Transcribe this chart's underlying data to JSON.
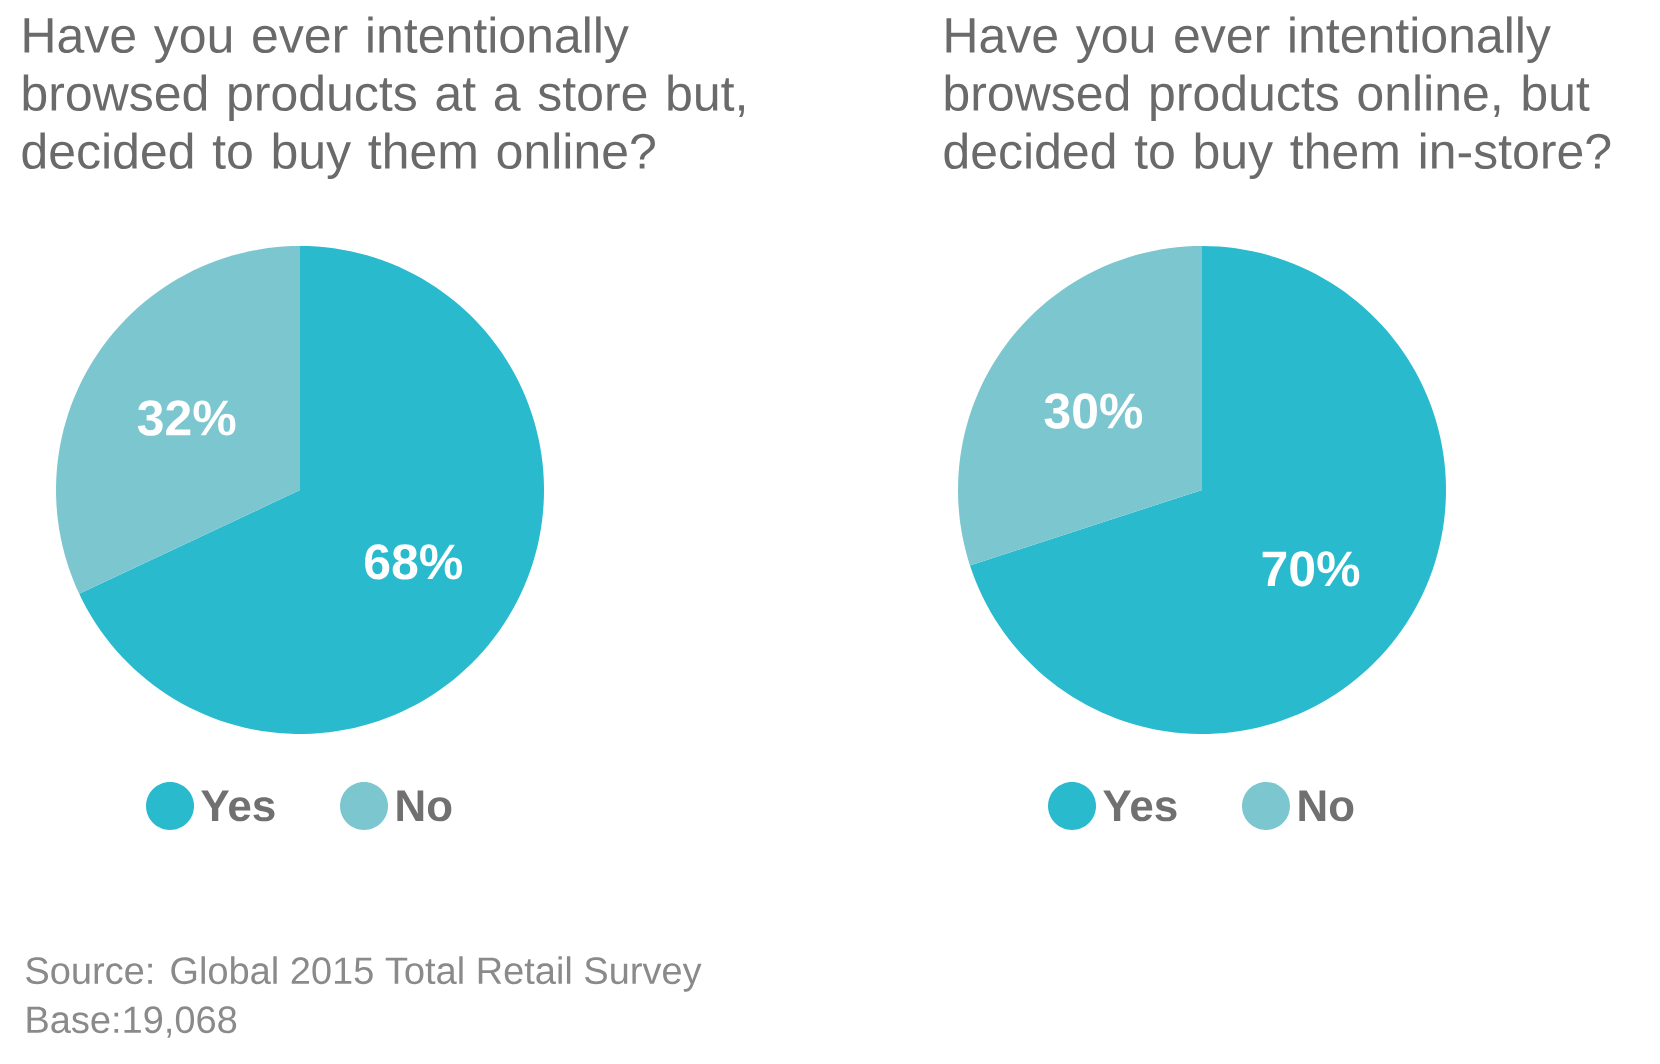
{
  "chart_data": [
    {
      "type": "pie",
      "title": "Have you ever intentionally browsed products at a store but, decided to buy them online?",
      "categories": [
        "Yes",
        "No"
      ],
      "values": [
        68,
        32
      ],
      "value_labels": [
        "68%",
        "32%"
      ],
      "colors": [
        "#29bace",
        "#7cc6cf"
      ],
      "legend": "bottom",
      "annotations": [
        "Source: Global 2015 Total Retail Survey",
        "Base:19,068"
      ]
    },
    {
      "type": "pie",
      "title": "Have you ever intentionally browsed products online, but decided to buy them in-store?",
      "categories": [
        "Yes",
        "No"
      ],
      "values": [
        70,
        30
      ],
      "value_labels": [
        "70%",
        "30%"
      ],
      "colors": [
        "#29bace",
        "#7cc6cf"
      ],
      "legend": "bottom"
    }
  ]
}
